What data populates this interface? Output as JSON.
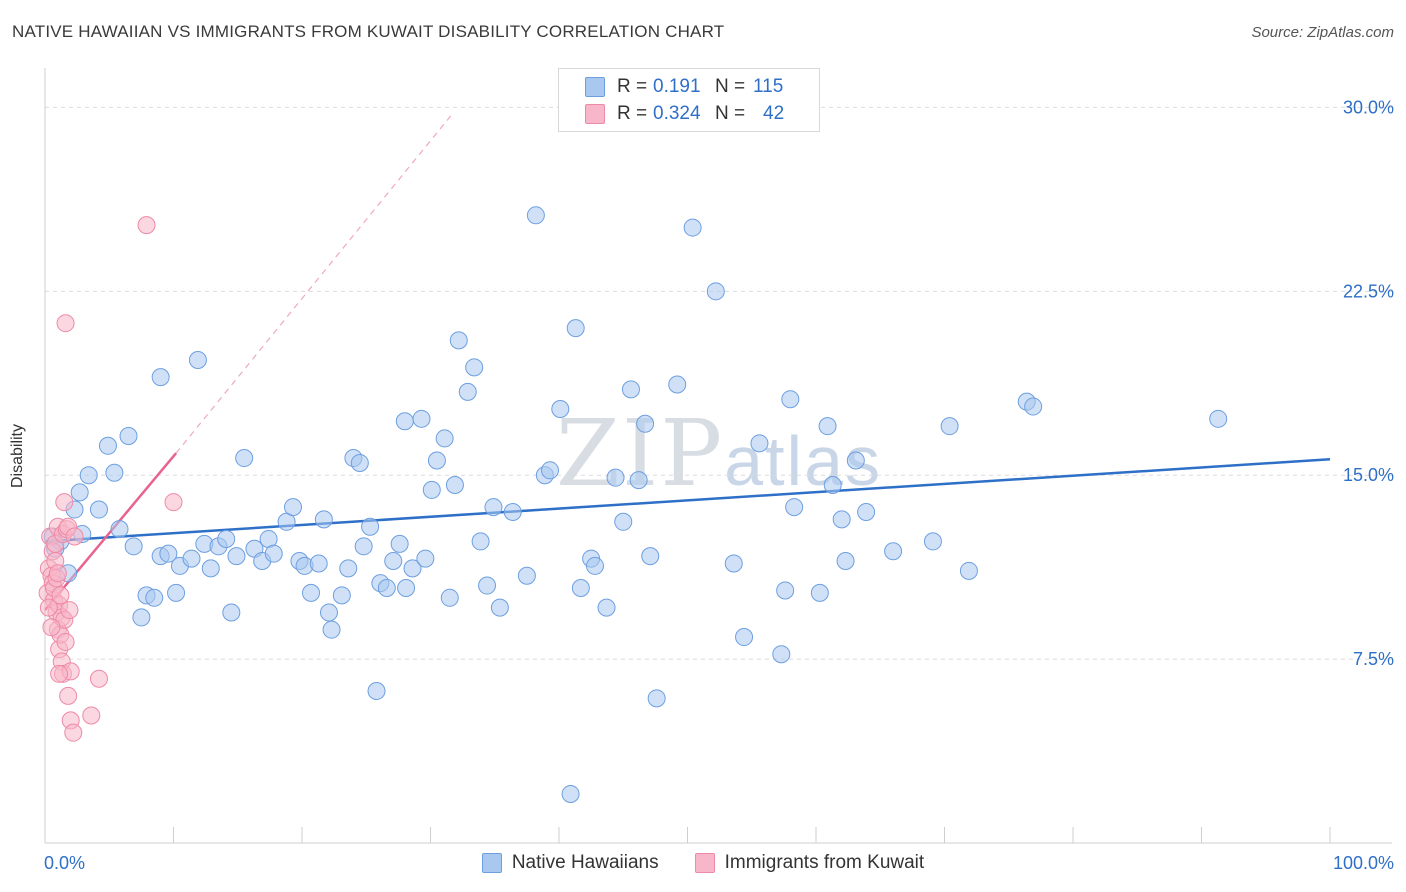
{
  "title": "NATIVE HAWAIIAN VS IMMIGRANTS FROM KUWAIT DISABILITY CORRELATION CHART",
  "source": "Source: ZipAtlas.com",
  "watermark": {
    "zip": "ZIP",
    "atlas": "atlas"
  },
  "legend": {
    "r_label": "R =",
    "n_label": "N =",
    "rows": [
      {
        "r": "0.191",
        "n": "115",
        "color": "#a9c8f0",
        "stroke": "#6d9fe0"
      },
      {
        "r": "0.324",
        "n": "42",
        "color": "#f7b6c9",
        "stroke": "#ee8aa6"
      }
    ]
  },
  "bottom_legend": [
    "Native Hawaiians",
    "Immigrants from Kuwait"
  ],
  "chart_data": {
    "type": "scatter",
    "title": "NATIVE HAWAIIAN VS IMMIGRANTS FROM KUWAIT DISABILITY CORRELATION CHART",
    "xlabel": "",
    "ylabel": "Disability",
    "xlim": [
      0,
      100
    ],
    "ylim": [
      0,
      31.2
    ],
    "x_tick_labels": [
      "0.0%",
      "100.0%"
    ],
    "y_ticks": [
      7.5,
      15.0,
      22.5,
      30.0
    ],
    "y_tick_labels": [
      "7.5%",
      "15.0%",
      "22.5%",
      "30.0%"
    ],
    "grid": true,
    "series": [
      {
        "name": "Native Hawaiians",
        "color": "#a9c8f0",
        "stroke": "#6d9fe0",
        "trend": {
          "x0": 0,
          "y0": 12.3,
          "x1": 100,
          "y1": 15.65,
          "color": "#2e6fc7"
        },
        "points": [
          [
            0.6,
            12.5
          ],
          [
            1.2,
            12.3
          ],
          [
            1.8,
            11.0
          ],
          [
            2.3,
            13.6
          ],
          [
            2.7,
            14.3
          ],
          [
            3.4,
            15.0
          ],
          [
            4.2,
            13.6
          ],
          [
            4.9,
            16.2
          ],
          [
            5.4,
            15.1
          ],
          [
            5.8,
            12.8
          ],
          [
            6.5,
            16.6
          ],
          [
            6.9,
            12.1
          ],
          [
            7.5,
            9.2
          ],
          [
            7.9,
            10.1
          ],
          [
            8.5,
            10.0
          ],
          [
            9.0,
            11.7
          ],
          [
            9.0,
            19.0
          ],
          [
            9.6,
            11.8
          ],
          [
            10.2,
            10.2
          ],
          [
            10.5,
            11.3
          ],
          [
            11.4,
            11.6
          ],
          [
            11.9,
            19.7
          ],
          [
            12.4,
            12.2
          ],
          [
            12.9,
            11.2
          ],
          [
            13.5,
            12.1
          ],
          [
            14.1,
            12.4
          ],
          [
            14.5,
            9.4
          ],
          [
            14.9,
            11.7
          ],
          [
            15.5,
            15.7
          ],
          [
            16.3,
            12.0
          ],
          [
            16.9,
            11.5
          ],
          [
            17.4,
            12.4
          ],
          [
            17.8,
            11.8
          ],
          [
            18.8,
            13.1
          ],
          [
            19.3,
            13.7
          ],
          [
            19.8,
            11.5
          ],
          [
            20.2,
            11.3
          ],
          [
            20.7,
            10.2
          ],
          [
            21.3,
            11.4
          ],
          [
            21.7,
            13.2
          ],
          [
            22.1,
            9.4
          ],
          [
            22.3,
            8.7
          ],
          [
            23.1,
            10.1
          ],
          [
            23.6,
            11.2
          ],
          [
            24.0,
            15.7
          ],
          [
            24.5,
            15.5
          ],
          [
            24.8,
            12.1
          ],
          [
            25.3,
            12.9
          ],
          [
            25.8,
            6.2
          ],
          [
            26.1,
            10.6
          ],
          [
            26.6,
            10.4
          ],
          [
            27.1,
            11.5
          ],
          [
            27.6,
            12.2
          ],
          [
            28.0,
            17.2
          ],
          [
            28.1,
            10.4
          ],
          [
            28.6,
            11.2
          ],
          [
            29.3,
            17.3
          ],
          [
            29.6,
            11.6
          ],
          [
            30.1,
            14.4
          ],
          [
            30.5,
            15.6
          ],
          [
            31.1,
            16.5
          ],
          [
            31.5,
            10.0
          ],
          [
            31.9,
            14.6
          ],
          [
            32.2,
            20.5
          ],
          [
            32.9,
            18.4
          ],
          [
            33.4,
            19.4
          ],
          [
            33.9,
            12.3
          ],
          [
            34.4,
            10.5
          ],
          [
            34.9,
            13.7
          ],
          [
            35.4,
            9.6
          ],
          [
            36.4,
            13.5
          ],
          [
            37.5,
            10.9
          ],
          [
            38.2,
            25.6
          ],
          [
            38.9,
            15.0
          ],
          [
            39.3,
            15.2
          ],
          [
            40.1,
            17.7
          ],
          [
            40.9,
            2.0
          ],
          [
            41.3,
            21.0
          ],
          [
            41.7,
            10.4
          ],
          [
            42.5,
            11.6
          ],
          [
            42.8,
            11.3
          ],
          [
            43.7,
            9.6
          ],
          [
            44.4,
            14.9
          ],
          [
            45.0,
            13.1
          ],
          [
            45.6,
            18.5
          ],
          [
            46.2,
            14.8
          ],
          [
            46.7,
            17.1
          ],
          [
            47.1,
            11.7
          ],
          [
            47.6,
            5.9
          ],
          [
            49.2,
            18.7
          ],
          [
            50.4,
            25.1
          ],
          [
            52.2,
            22.5
          ],
          [
            53.6,
            11.4
          ],
          [
            54.4,
            8.4
          ],
          [
            55.6,
            16.3
          ],
          [
            57.3,
            7.7
          ],
          [
            57.6,
            10.3
          ],
          [
            58.0,
            18.1
          ],
          [
            58.3,
            13.7
          ],
          [
            60.3,
            10.2
          ],
          [
            60.9,
            17.0
          ],
          [
            61.3,
            14.6
          ],
          [
            62.0,
            13.2
          ],
          [
            62.3,
            11.5
          ],
          [
            63.1,
            15.6
          ],
          [
            63.9,
            13.5
          ],
          [
            66.0,
            11.9
          ],
          [
            69.1,
            12.3
          ],
          [
            70.4,
            17.0
          ],
          [
            71.9,
            11.1
          ],
          [
            76.4,
            18.0
          ],
          [
            76.9,
            17.8
          ],
          [
            91.3,
            17.3
          ],
          [
            0.8,
            12.0
          ],
          [
            2.9,
            12.6
          ]
        ]
      },
      {
        "name": "Immigrants from Kuwait",
        "color": "#f7b6c9",
        "stroke": "#ee8aa6",
        "trend": {
          "x0": 0,
          "y0": 9.5,
          "x1": 10.2,
          "y1": 15.9,
          "color": "#e8638d"
        },
        "trend_ext": {
          "x0": 10.2,
          "y0": 15.9,
          "x1": 31.8,
          "y1": 29.8
        },
        "points": [
          [
            0.2,
            10.2
          ],
          [
            0.3,
            11.2
          ],
          [
            0.4,
            12.5
          ],
          [
            0.5,
            10.9
          ],
          [
            0.6,
            11.9
          ],
          [
            0.6,
            10.6
          ],
          [
            0.7,
            9.9
          ],
          [
            0.7,
            10.4
          ],
          [
            0.8,
            12.2
          ],
          [
            0.8,
            11.5
          ],
          [
            0.9,
            9.4
          ],
          [
            0.9,
            10.8
          ],
          [
            1.0,
            8.7
          ],
          [
            1.0,
            12.9
          ],
          [
            1.0,
            11.0
          ],
          [
            1.1,
            9.7
          ],
          [
            1.1,
            7.9
          ],
          [
            1.2,
            10.1
          ],
          [
            1.2,
            8.5
          ],
          [
            1.3,
            9.2
          ],
          [
            1.3,
            7.4
          ],
          [
            1.4,
            6.9
          ],
          [
            1.4,
            12.6
          ],
          [
            1.5,
            13.9
          ],
          [
            1.5,
            9.1
          ],
          [
            1.6,
            21.2
          ],
          [
            1.6,
            8.2
          ],
          [
            1.7,
            12.8
          ],
          [
            1.8,
            6.0
          ],
          [
            1.8,
            12.9
          ],
          [
            1.9,
            9.5
          ],
          [
            2.0,
            7.0
          ],
          [
            2.0,
            5.0
          ],
          [
            2.2,
            4.5
          ],
          [
            2.3,
            12.5
          ],
          [
            3.6,
            5.2
          ],
          [
            4.2,
            6.7
          ],
          [
            7.9,
            25.2
          ],
          [
            10.0,
            13.9
          ],
          [
            0.3,
            9.6
          ],
          [
            0.5,
            8.8
          ],
          [
            1.1,
            6.9
          ]
        ]
      }
    ]
  }
}
